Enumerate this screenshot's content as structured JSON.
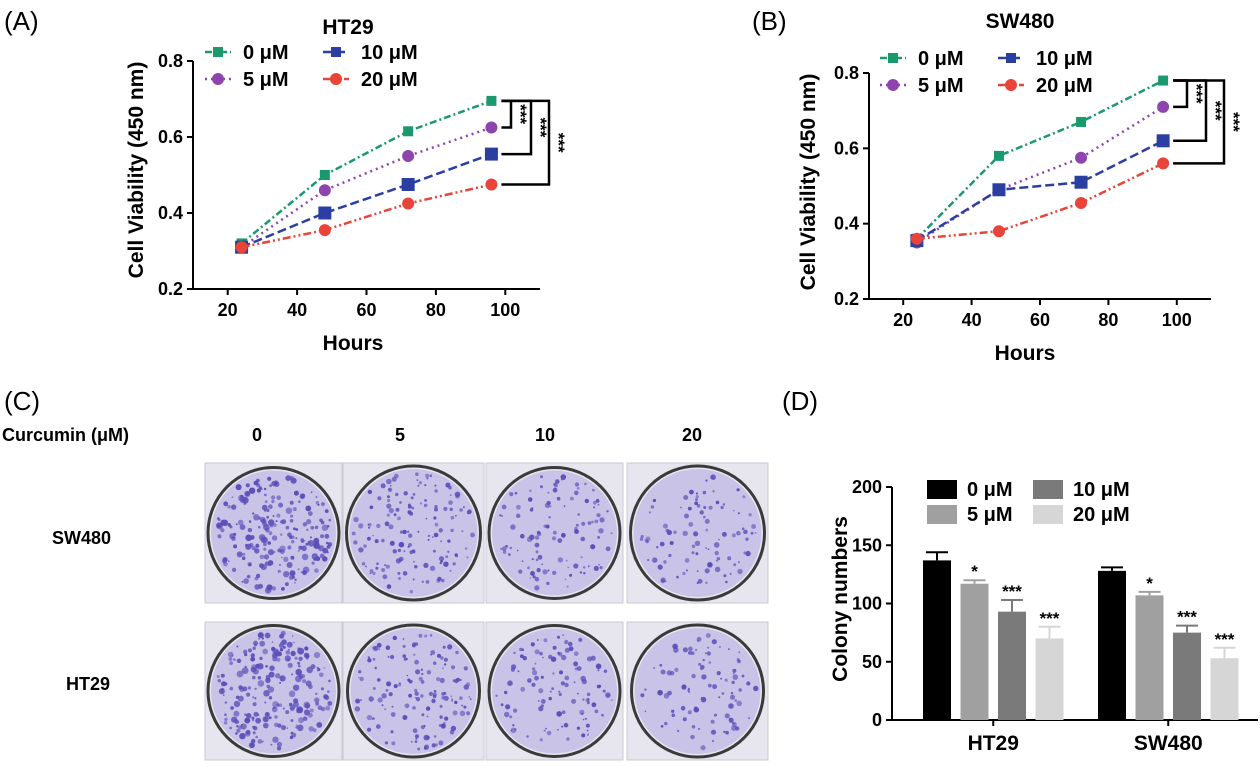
{
  "figure": {
    "panels": [
      {
        "label": "(A)"
      },
      {
        "label": "(B)"
      },
      {
        "label": "(C)"
      },
      {
        "label": "(D)"
      }
    ]
  },
  "colonies": {
    "header_label": "Curcumin (μM)",
    "concentrations": [
      "0",
      "5",
      "10",
      "20"
    ],
    "rows": [
      "SW480",
      "HT29"
    ],
    "dish_color": "#5a4fb8"
  },
  "chart_data": [
    {
      "type": "line",
      "title": "HT29",
      "xlabel": "Hours",
      "ylabel": "Cell Viability (450 nm)",
      "xlim": [
        10,
        110
      ],
      "ylim": [
        0.2,
        0.8
      ],
      "xticks": [
        "20",
        "40",
        "60",
        "80",
        "100"
      ],
      "yticks": [
        "0.2",
        "0.4",
        "0.6",
        "0.8"
      ],
      "x": [
        24,
        48,
        72,
        96
      ],
      "series": [
        {
          "name": "0 μM",
          "color": "#1a9a6c",
          "marker": "square",
          "dash": "dashdot",
          "values": [
            0.32,
            0.5,
            0.615,
            0.695
          ]
        },
        {
          "name": "5 μM",
          "color": "#8e44ad",
          "marker": "circle",
          "dash": "dot",
          "values": [
            0.31,
            0.46,
            0.55,
            0.625
          ]
        },
        {
          "name": "10 μM",
          "color": "#2b3fa3",
          "marker": "square",
          "dash": "dash",
          "values": [
            0.31,
            0.4,
            0.475,
            0.555
          ]
        },
        {
          "name": "20 μM",
          "color": "#e8443a",
          "marker": "circle",
          "dash": "dashdotdot",
          "values": [
            0.31,
            0.355,
            0.425,
            0.475
          ]
        }
      ],
      "significance": [
        "***",
        "***",
        "***"
      ]
    },
    {
      "type": "line",
      "title": "SW480",
      "xlabel": "Hours",
      "ylabel": "Cell Viability (450 nm)",
      "xlim": [
        10,
        110
      ],
      "ylim": [
        0.2,
        0.8
      ],
      "xticks": [
        "20",
        "40",
        "60",
        "80",
        "100"
      ],
      "yticks": [
        "0.2",
        "0.4",
        "0.6",
        "0.8"
      ],
      "x": [
        24,
        48,
        72,
        96
      ],
      "series": [
        {
          "name": "0 μM",
          "color": "#1a9a6c",
          "marker": "square",
          "dash": "dashdot",
          "values": [
            0.36,
            0.58,
            0.67,
            0.78
          ]
        },
        {
          "name": "5 μM",
          "color": "#8e44ad",
          "marker": "circle",
          "dash": "dot",
          "values": [
            0.35,
            0.49,
            0.575,
            0.71
          ]
        },
        {
          "name": "10 μM",
          "color": "#2b3fa3",
          "marker": "square",
          "dash": "dash",
          "values": [
            0.355,
            0.49,
            0.51,
            0.62
          ]
        },
        {
          "name": "20 μM",
          "color": "#e8443a",
          "marker": "circle",
          "dash": "dashdotdot",
          "values": [
            0.36,
            0.38,
            0.455,
            0.56
          ]
        }
      ],
      "significance": [
        "***",
        "***",
        "***"
      ]
    },
    {
      "type": "bar",
      "title": "",
      "xlabel": "",
      "ylabel": "Colony numbers",
      "ylim": [
        0,
        200
      ],
      "yticks": [
        "0",
        "50",
        "100",
        "150",
        "200"
      ],
      "categories": [
        "HT29",
        "SW480"
      ],
      "series": [
        {
          "name": "0 μM",
          "color": "#000000",
          "values": [
            137,
            128
          ],
          "errors": [
            7,
            3
          ],
          "sig": [
            "",
            ""
          ]
        },
        {
          "name": "5 μM",
          "color": "#a0a0a0",
          "values": [
            117,
            107
          ],
          "errors": [
            3,
            3
          ],
          "sig": [
            "*",
            "*"
          ]
        },
        {
          "name": "10 μM",
          "color": "#7a7a7a",
          "values": [
            93,
            75
          ],
          "errors": [
            10,
            6
          ],
          "sig": [
            "***",
            "***"
          ]
        },
        {
          "name": "20 μM",
          "color": "#d6d6d6",
          "values": [
            70,
            53
          ],
          "errors": [
            10,
            9
          ],
          "sig": [
            "***",
            "***"
          ]
        }
      ]
    }
  ]
}
